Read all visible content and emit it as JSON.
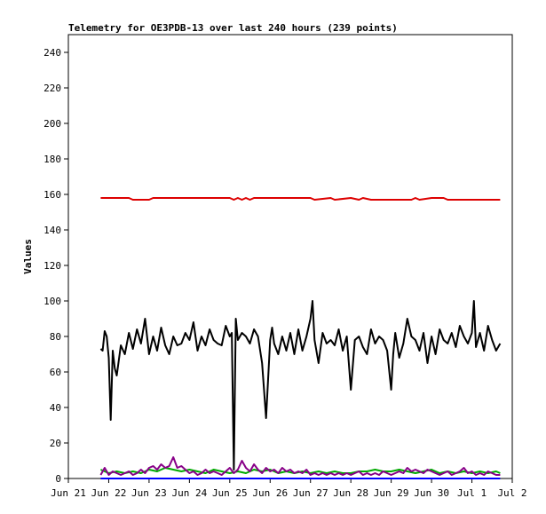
{
  "chart_data": {
    "type": "line",
    "title": "Telemetry for OE3PDB-13 over last 240 hours (239 points)",
    "xlabel": "",
    "ylabel": "Values",
    "ylim": [
      0,
      250
    ],
    "yticks": [
      0,
      20,
      40,
      60,
      80,
      100,
      120,
      140,
      160,
      180,
      200,
      220,
      240
    ],
    "xlim": [
      0,
      11
    ],
    "xticks": [
      {
        "x": 0,
        "label": "Jun 21"
      },
      {
        "x": 1,
        "label": "Jun 22"
      },
      {
        "x": 2,
        "label": "Jun 23"
      },
      {
        "x": 3,
        "label": "Jun 24"
      },
      {
        "x": 4,
        "label": "Jun 25"
      },
      {
        "x": 5,
        "label": "Jun 26"
      },
      {
        "x": 6,
        "label": "Jun 27"
      },
      {
        "x": 7,
        "label": "Jun 28"
      },
      {
        "x": 8,
        "label": "Jun 29"
      },
      {
        "x": 9,
        "label": "Jun 30"
      },
      {
        "x": 10,
        "label": "Jul 1"
      },
      {
        "x": 11,
        "label": "Jul 2"
      }
    ],
    "grid": false,
    "legend": "none",
    "series": [
      {
        "color": "#dd0000",
        "x": [
          0.8,
          1.5,
          1.6,
          2.0,
          2.1,
          3.5,
          4.0,
          4.1,
          4.2,
          4.3,
          4.4,
          4.5,
          4.6,
          4.7,
          5.0,
          5.5,
          6.0,
          6.1,
          6.5,
          6.6,
          7.0,
          7.2,
          7.3,
          7.5,
          8.0,
          8.5,
          8.6,
          8.7,
          9.0,
          9.3,
          9.4,
          10.0,
          10.5,
          10.7
        ],
        "values": [
          158,
          158,
          157,
          157,
          158,
          158,
          158,
          157,
          158,
          157,
          158,
          157,
          158,
          158,
          158,
          158,
          158,
          157,
          158,
          157,
          158,
          157,
          158,
          157,
          157,
          157,
          158,
          157,
          158,
          158,
          157,
          157,
          157,
          157
        ]
      },
      {
        "color": "#000000",
        "x": [
          0.8,
          0.85,
          0.9,
          0.95,
          1.0,
          1.05,
          1.1,
          1.15,
          1.2,
          1.3,
          1.4,
          1.5,
          1.6,
          1.7,
          1.8,
          1.9,
          2.0,
          2.1,
          2.2,
          2.3,
          2.4,
          2.5,
          2.6,
          2.7,
          2.8,
          2.9,
          3.0,
          3.1,
          3.2,
          3.3,
          3.4,
          3.5,
          3.6,
          3.7,
          3.8,
          3.9,
          4.0,
          4.05,
          4.1,
          4.15,
          4.2,
          4.3,
          4.4,
          4.5,
          4.6,
          4.7,
          4.8,
          4.9,
          5.0,
          5.05,
          5.1,
          5.2,
          5.3,
          5.4,
          5.5,
          5.6,
          5.7,
          5.8,
          5.9,
          6.0,
          6.05,
          6.1,
          6.2,
          6.3,
          6.4,
          6.5,
          6.6,
          6.7,
          6.8,
          6.9,
          7.0,
          7.1,
          7.2,
          7.3,
          7.4,
          7.5,
          7.6,
          7.7,
          7.8,
          7.9,
          8.0,
          8.05,
          8.1,
          8.2,
          8.3,
          8.4,
          8.5,
          8.6,
          8.7,
          8.8,
          8.9,
          9.0,
          9.1,
          9.2,
          9.3,
          9.4,
          9.5,
          9.6,
          9.7,
          9.8,
          9.9,
          10.0,
          10.05,
          10.1,
          10.2,
          10.3,
          10.4,
          10.5,
          10.6,
          10.7
        ],
        "values": [
          73,
          72,
          83,
          80,
          68,
          33,
          72,
          62,
          58,
          75,
          70,
          82,
          73,
          84,
          76,
          90,
          70,
          80,
          72,
          85,
          75,
          70,
          80,
          75,
          76,
          82,
          78,
          88,
          72,
          80,
          75,
          84,
          78,
          76,
          75,
          86,
          80,
          82,
          5,
          90,
          78,
          82,
          80,
          76,
          84,
          80,
          65,
          34,
          78,
          85,
          76,
          70,
          80,
          72,
          82,
          70,
          84,
          72,
          80,
          90,
          100,
          78,
          65,
          82,
          76,
          78,
          75,
          84,
          72,
          80,
          50,
          78,
          80,
          74,
          70,
          84,
          76,
          80,
          78,
          72,
          50,
          70,
          82,
          68,
          76,
          90,
          80,
          78,
          72,
          82,
          65,
          80,
          70,
          84,
          78,
          76,
          82,
          74,
          86,
          80,
          76,
          82,
          100,
          74,
          82,
          72,
          86,
          78,
          72,
          76
        ]
      },
      {
        "color": "#00aa00",
        "x": [
          0.8,
          1.0,
          1.2,
          1.4,
          1.6,
          1.8,
          2.0,
          2.2,
          2.4,
          2.6,
          2.8,
          3.0,
          3.2,
          3.4,
          3.6,
          3.8,
          4.0,
          4.2,
          4.4,
          4.6,
          4.8,
          5.0,
          5.2,
          5.4,
          5.6,
          5.8,
          6.0,
          6.2,
          6.4,
          6.6,
          6.8,
          7.0,
          7.2,
          7.4,
          7.6,
          7.8,
          8.0,
          8.2,
          8.4,
          8.6,
          8.8,
          9.0,
          9.2,
          9.4,
          9.6,
          9.8,
          10.0,
          10.2,
          10.4,
          10.6,
          10.7
        ],
        "values": [
          5,
          3,
          4,
          3,
          4,
          3,
          5,
          4,
          6,
          5,
          4,
          5,
          4,
          3,
          5,
          4,
          3,
          4,
          3,
          5,
          4,
          5,
          3,
          4,
          3,
          4,
          3,
          4,
          3,
          4,
          3,
          3,
          4,
          4,
          5,
          4,
          4,
          5,
          4,
          3,
          4,
          5,
          3,
          4,
          3,
          4,
          3,
          4,
          3,
          4,
          3
        ]
      },
      {
        "color": "#880088",
        "x": [
          0.8,
          0.9,
          1.0,
          1.1,
          1.2,
          1.3,
          1.4,
          1.5,
          1.6,
          1.7,
          1.8,
          1.9,
          2.0,
          2.1,
          2.2,
          2.3,
          2.4,
          2.5,
          2.6,
          2.7,
          2.8,
          2.9,
          3.0,
          3.1,
          3.2,
          3.3,
          3.4,
          3.5,
          3.6,
          3.7,
          3.8,
          3.9,
          4.0,
          4.1,
          4.2,
          4.3,
          4.4,
          4.5,
          4.6,
          4.7,
          4.8,
          4.9,
          5.0,
          5.1,
          5.2,
          5.3,
          5.4,
          5.5,
          5.6,
          5.7,
          5.8,
          5.9,
          6.0,
          6.1,
          6.2,
          6.3,
          6.4,
          6.5,
          6.6,
          6.7,
          6.8,
          6.9,
          7.0,
          7.1,
          7.2,
          7.3,
          7.4,
          7.5,
          7.6,
          7.7,
          7.8,
          7.9,
          8.0,
          8.1,
          8.2,
          8.3,
          8.4,
          8.5,
          8.6,
          8.7,
          8.8,
          8.9,
          9.0,
          9.1,
          9.2,
          9.3,
          9.4,
          9.5,
          9.6,
          9.7,
          9.8,
          9.9,
          10.0,
          10.1,
          10.2,
          10.3,
          10.4,
          10.5,
          10.6,
          10.7
        ],
        "values": [
          2,
          6,
          2,
          4,
          3,
          2,
          3,
          4,
          2,
          3,
          5,
          3,
          6,
          7,
          5,
          8,
          6,
          7,
          12,
          6,
          7,
          5,
          3,
          4,
          2,
          3,
          5,
          3,
          4,
          3,
          2,
          4,
          6,
          3,
          5,
          10,
          6,
          4,
          8,
          5,
          3,
          6,
          4,
          5,
          3,
          6,
          4,
          5,
          3,
          4,
          3,
          5,
          2,
          3,
          2,
          3,
          2,
          3,
          2,
          3,
          2,
          3,
          2,
          3,
          4,
          2,
          3,
          2,
          3,
          2,
          4,
          3,
          2,
          3,
          4,
          3,
          6,
          4,
          5,
          4,
          3,
          5,
          4,
          3,
          2,
          3,
          4,
          2,
          3,
          4,
          6,
          3,
          4,
          2,
          3,
          2,
          4,
          3,
          2,
          2
        ]
      },
      {
        "color": "#0000ff",
        "x": [
          0.8,
          10.7
        ],
        "values": [
          0,
          0
        ]
      }
    ]
  }
}
